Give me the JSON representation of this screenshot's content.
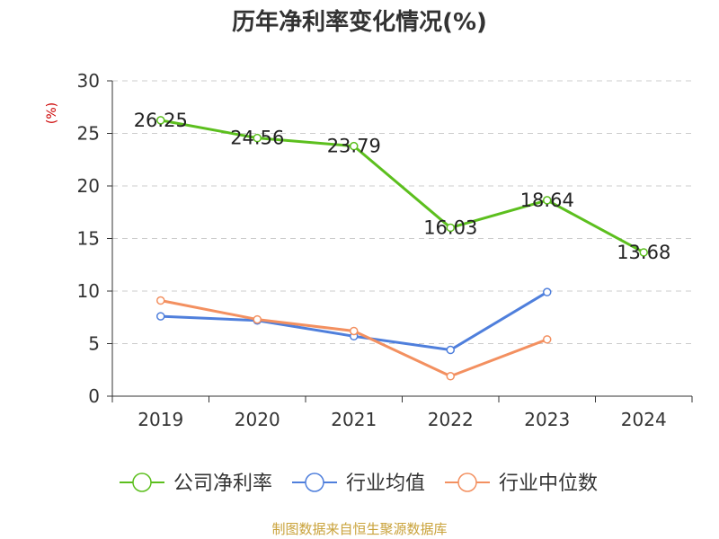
{
  "source": "制图数据来自恒生聚源数据库",
  "colors": {
    "company": "#5cbf1e",
    "industry_avg": "#4f7fdc",
    "industry_median": "#f39060",
    "axis": "#333333",
    "grid": "#cccccc",
    "unit_label": "#cc0000"
  },
  "chart_data": {
    "type": "line",
    "title": "历年净利率变化情况(%)",
    "ylabel": "(%)",
    "xlabel": "",
    "categories": [
      "2019",
      "2020",
      "2021",
      "2022",
      "2023",
      "2024"
    ],
    "ylim": [
      0,
      30
    ],
    "yticks": [
      0,
      5,
      10,
      15,
      20,
      25,
      30
    ],
    "grid": true,
    "legend_position": "bottom",
    "series": [
      {
        "name": "公司净利率",
        "color_key": "company",
        "values": [
          26.25,
          24.56,
          23.79,
          16.03,
          18.64,
          13.68
        ],
        "labels": [
          "26.25",
          "24.56",
          "23.79",
          "16.03",
          "18.64",
          "13.68"
        ]
      },
      {
        "name": "行业均值",
        "color_key": "industry_avg",
        "values": [
          7.6,
          7.2,
          5.7,
          4.4,
          9.9,
          null
        ]
      },
      {
        "name": "行业中位数",
        "color_key": "industry_median",
        "values": [
          9.1,
          7.3,
          6.2,
          1.9,
          5.4,
          null
        ]
      }
    ]
  }
}
